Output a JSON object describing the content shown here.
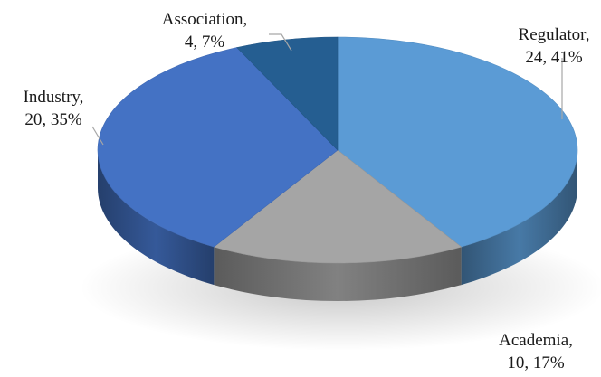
{
  "chart_data": {
    "type": "pie",
    "title": "",
    "style": "3d",
    "legend": "none",
    "slices": [
      {
        "label": "Regulator",
        "value": 24,
        "percent": "41%",
        "line1": "Regulator,",
        "line2": "24, 41%",
        "color": "#5b9bd5"
      },
      {
        "label": "Academia",
        "value": 10,
        "percent": "17%",
        "line1": "Academia,",
        "line2": "10, 17%",
        "color": "#a5a5a5"
      },
      {
        "label": "Industry",
        "value": 20,
        "percent": "35%",
        "line1": "Industry,",
        "line2": "20, 35%",
        "color": "#4472c4"
      },
      {
        "label": "Association",
        "value": 4,
        "percent": "7%",
        "line1": "Association,",
        "line2": "4, 7%",
        "color": "#255e91"
      }
    ]
  }
}
